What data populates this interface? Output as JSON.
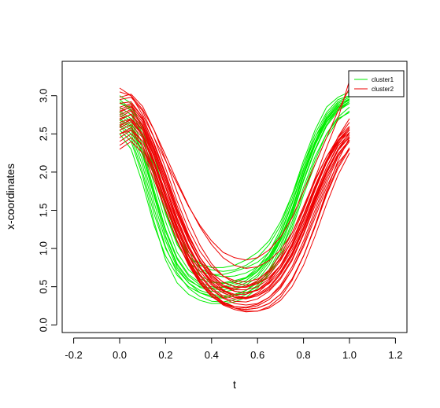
{
  "chart_data": {
    "type": "line",
    "title": "",
    "xlabel": "t",
    "ylabel": "x-coordinates",
    "xlim": [
      -0.25,
      1.25
    ],
    "ylim": [
      -0.1,
      3.45
    ],
    "x_ticks": [
      -0.2,
      0.0,
      0.2,
      0.4,
      0.6,
      0.8,
      1.0,
      1.2
    ],
    "x_tick_labels": [
      "-0.2",
      "0.0",
      "0.2",
      "0.4",
      "0.6",
      "0.8",
      "1.0",
      "1.2"
    ],
    "y_ticks": [
      0.0,
      0.5,
      1.0,
      1.5,
      2.0,
      2.5,
      3.0
    ],
    "y_tick_labels": [
      "0.0",
      "0.5",
      "1.0",
      "1.5",
      "2.0",
      "2.5",
      "3.0"
    ],
    "grid": false,
    "legend_position": "top-right",
    "legend": [
      {
        "label": "cluster1",
        "color": "#00ee00"
      },
      {
        "label": "cluster2",
        "color": "#ee0000"
      }
    ],
    "t": [
      0.0,
      0.05,
      0.1,
      0.15,
      0.2,
      0.25,
      0.3,
      0.35,
      0.4,
      0.45,
      0.5,
      0.55,
      0.6,
      0.65,
      0.7,
      0.75,
      0.8,
      0.85,
      0.9,
      0.95,
      1.0
    ],
    "series": [
      {
        "color": "#00ee00",
        "values": [
          2.95,
          2.82,
          2.45,
          1.95,
          1.45,
          1.05,
          0.82,
          0.7,
          0.66,
          0.66,
          0.7,
          0.75,
          0.82,
          0.95,
          1.2,
          1.6,
          2.05,
          2.45,
          2.75,
          2.92,
          3.0
        ]
      },
      {
        "color": "#00ee00",
        "values": [
          2.8,
          2.7,
          2.35,
          1.85,
          1.35,
          0.95,
          0.72,
          0.6,
          0.55,
          0.55,
          0.58,
          0.62,
          0.72,
          0.88,
          1.12,
          1.5,
          1.95,
          2.35,
          2.65,
          2.82,
          2.9
        ]
      },
      {
        "color": "#00ee00",
        "values": [
          2.6,
          2.45,
          2.0,
          1.45,
          1.0,
          0.72,
          0.55,
          0.45,
          0.4,
          0.38,
          0.4,
          0.45,
          0.55,
          0.7,
          0.95,
          1.3,
          1.75,
          2.15,
          2.5,
          2.72,
          2.85
        ]
      },
      {
        "color": "#00ee00",
        "values": [
          2.5,
          2.3,
          1.85,
          1.3,
          0.9,
          0.65,
          0.5,
          0.42,
          0.38,
          0.36,
          0.38,
          0.42,
          0.5,
          0.65,
          0.88,
          1.25,
          1.7,
          2.1,
          2.45,
          2.68,
          2.8
        ]
      },
      {
        "color": "#00ee00",
        "values": [
          2.7,
          2.6,
          2.25,
          1.7,
          1.15,
          0.78,
          0.58,
          0.5,
          0.48,
          0.5,
          0.55,
          0.62,
          0.75,
          0.95,
          1.25,
          1.65,
          2.1,
          2.5,
          2.78,
          2.95,
          3.0
        ]
      },
      {
        "color": "#00ee00",
        "values": [
          2.9,
          2.85,
          2.6,
          2.2,
          1.7,
          1.25,
          0.95,
          0.8,
          0.75,
          0.75,
          0.78,
          0.85,
          0.95,
          1.1,
          1.35,
          1.7,
          2.1,
          2.45,
          2.7,
          2.85,
          2.95
        ]
      },
      {
        "color": "#00ee00",
        "values": [
          2.65,
          2.55,
          2.15,
          1.6,
          1.1,
          0.75,
          0.55,
          0.42,
          0.36,
          0.35,
          0.38,
          0.45,
          0.58,
          0.78,
          1.05,
          1.45,
          1.9,
          2.3,
          2.62,
          2.82,
          2.92
        ]
      },
      {
        "color": "#00ee00",
        "values": [
          2.55,
          2.4,
          1.95,
          1.35,
          0.85,
          0.55,
          0.4,
          0.32,
          0.28,
          0.28,
          0.3,
          0.36,
          0.48,
          0.68,
          0.95,
          1.35,
          1.8,
          2.2,
          2.5,
          2.7,
          2.78
        ]
      },
      {
        "color": "#00ee00",
        "values": [
          3.0,
          2.9,
          2.55,
          2.05,
          1.55,
          1.15,
          0.9,
          0.78,
          0.72,
          0.7,
          0.72,
          0.78,
          0.88,
          1.05,
          1.3,
          1.7,
          2.15,
          2.55,
          2.85,
          2.98,
          3.05
        ]
      },
      {
        "color": "#00ee00",
        "values": [
          2.75,
          2.62,
          2.25,
          1.72,
          1.22,
          0.86,
          0.64,
          0.52,
          0.47,
          0.46,
          0.49,
          0.55,
          0.66,
          0.85,
          1.12,
          1.52,
          1.98,
          2.38,
          2.68,
          2.86,
          2.94
        ]
      },
      {
        "color": "#00ee00",
        "values": [
          2.85,
          2.75,
          2.45,
          1.98,
          1.48,
          1.08,
          0.8,
          0.64,
          0.57,
          0.54,
          0.56,
          0.61,
          0.7,
          0.86,
          1.1,
          1.48,
          1.95,
          2.38,
          2.7,
          2.88,
          2.96
        ]
      },
      {
        "color": "#00ee00",
        "values": [
          2.62,
          2.5,
          2.08,
          1.52,
          1.02,
          0.68,
          0.48,
          0.37,
          0.31,
          0.3,
          0.33,
          0.4,
          0.52,
          0.72,
          1.0,
          1.42,
          1.88,
          2.28,
          2.6,
          2.8,
          2.9
        ]
      },
      {
        "color": "#00ee00",
        "values": [
          2.92,
          2.8,
          2.5,
          2.05,
          1.58,
          1.18,
          0.9,
          0.74,
          0.66,
          0.63,
          0.64,
          0.68,
          0.76,
          0.9,
          1.14,
          1.52,
          1.98,
          2.4,
          2.72,
          2.9,
          2.98
        ]
      },
      {
        "color": "#00ee00",
        "values": [
          2.68,
          2.58,
          2.22,
          1.68,
          1.16,
          0.8,
          0.6,
          0.49,
          0.44,
          0.43,
          0.46,
          0.52,
          0.63,
          0.82,
          1.1,
          1.5,
          1.96,
          2.36,
          2.66,
          2.84,
          2.92
        ]
      },
      {
        "color": "#00ee00",
        "values": [
          2.78,
          2.66,
          2.3,
          1.76,
          1.25,
          0.88,
          0.66,
          0.55,
          0.5,
          0.49,
          0.52,
          0.58,
          0.7,
          0.9,
          1.18,
          1.58,
          2.02,
          2.4,
          2.7,
          2.88,
          2.95
        ]
      },
      {
        "color": "#ee0000",
        "values": [
          2.6,
          2.7,
          2.55,
          2.2,
          1.8,
          1.35,
          1.0,
          0.75,
          0.58,
          0.5,
          0.48,
          0.5,
          0.58,
          0.72,
          0.92,
          1.2,
          1.55,
          1.9,
          2.2,
          2.4,
          2.55
        ]
      },
      {
        "color": "#ee0000",
        "values": [
          3.1,
          3.0,
          2.75,
          2.45,
          2.15,
          1.85,
          1.55,
          1.3,
          1.1,
          0.95,
          0.88,
          0.85,
          0.88,
          0.98,
          1.15,
          1.4,
          1.75,
          2.1,
          2.45,
          2.8,
          3.1
        ]
      },
      {
        "color": "#ee0000",
        "values": [
          2.5,
          2.55,
          2.35,
          1.95,
          1.5,
          1.1,
          0.8,
          0.55,
          0.38,
          0.28,
          0.22,
          0.2,
          0.22,
          0.28,
          0.4,
          0.6,
          0.9,
          1.3,
          1.75,
          2.15,
          2.45
        ]
      },
      {
        "color": "#ee0000",
        "values": [
          2.8,
          2.85,
          2.65,
          2.3,
          1.9,
          1.5,
          1.15,
          0.88,
          0.68,
          0.56,
          0.5,
          0.5,
          0.56,
          0.68,
          0.88,
          1.15,
          1.5,
          1.88,
          2.2,
          2.45,
          2.6
        ]
      },
      {
        "color": "#ee0000",
        "values": [
          2.7,
          2.75,
          2.55,
          2.15,
          1.7,
          1.28,
          0.92,
          0.66,
          0.48,
          0.38,
          0.34,
          0.35,
          0.42,
          0.55,
          0.75,
          1.02,
          1.38,
          1.78,
          2.12,
          2.38,
          2.52
        ]
      },
      {
        "color": "#ee0000",
        "values": [
          2.4,
          2.5,
          2.35,
          2.0,
          1.6,
          1.2,
          0.85,
          0.6,
          0.42,
          0.3,
          0.24,
          0.22,
          0.25,
          0.33,
          0.48,
          0.72,
          1.05,
          1.45,
          1.85,
          2.2,
          2.4
        ]
      },
      {
        "color": "#ee0000",
        "values": [
          2.95,
          2.98,
          2.8,
          2.45,
          2.05,
          1.62,
          1.25,
          0.96,
          0.76,
          0.64,
          0.58,
          0.56,
          0.6,
          0.7,
          0.86,
          1.1,
          1.42,
          1.8,
          2.15,
          2.45,
          2.65
        ]
      },
      {
        "color": "#ee0000",
        "values": [
          2.55,
          2.62,
          2.45,
          2.1,
          1.68,
          1.25,
          0.9,
          0.64,
          0.46,
          0.35,
          0.28,
          0.26,
          0.28,
          0.36,
          0.5,
          0.72,
          1.02,
          1.4,
          1.8,
          2.12,
          2.3
        ]
      },
      {
        "color": "#ee0000",
        "values": [
          2.75,
          2.82,
          2.62,
          2.28,
          1.86,
          1.45,
          1.1,
          0.82,
          0.62,
          0.5,
          0.44,
          0.42,
          0.46,
          0.56,
          0.74,
          0.98,
          1.32,
          1.7,
          2.06,
          2.34,
          2.5
        ]
      },
      {
        "color": "#ee0000",
        "values": [
          3.05,
          3.0,
          2.82,
          2.55,
          2.22,
          1.88,
          1.56,
          1.28,
          1.05,
          0.88,
          0.78,
          0.74,
          0.76,
          0.84,
          0.98,
          1.2,
          1.52,
          1.92,
          2.32,
          2.7,
          3.2
        ]
      },
      {
        "color": "#ee0000",
        "values": [
          2.65,
          2.7,
          2.5,
          2.12,
          1.7,
          1.3,
          0.96,
          0.7,
          0.52,
          0.42,
          0.36,
          0.35,
          0.4,
          0.5,
          0.68,
          0.94,
          1.28,
          1.66,
          2.02,
          2.3,
          2.45
        ]
      },
      {
        "color": "#ee0000",
        "values": [
          2.85,
          2.9,
          2.72,
          2.36,
          1.95,
          1.52,
          1.16,
          0.88,
          0.68,
          0.56,
          0.5,
          0.49,
          0.54,
          0.65,
          0.84,
          1.1,
          1.44,
          1.82,
          2.16,
          2.42,
          2.58
        ]
      },
      {
        "color": "#ee0000",
        "values": [
          2.45,
          2.55,
          2.4,
          2.05,
          1.62,
          1.2,
          0.86,
          0.6,
          0.42,
          0.3,
          0.22,
          0.18,
          0.18,
          0.24,
          0.36,
          0.58,
          0.9,
          1.3,
          1.72,
          2.08,
          2.32
        ]
      },
      {
        "color": "#ee0000",
        "values": [
          2.72,
          2.8,
          2.6,
          2.25,
          1.82,
          1.4,
          1.04,
          0.76,
          0.56,
          0.44,
          0.38,
          0.36,
          0.4,
          0.5,
          0.68,
          0.92,
          1.26,
          1.64,
          2.0,
          2.3,
          2.48
        ]
      },
      {
        "color": "#ee0000",
        "values": [
          2.58,
          2.66,
          2.48,
          2.14,
          1.74,
          1.34,
          1.0,
          0.74,
          0.56,
          0.45,
          0.4,
          0.4,
          0.46,
          0.58,
          0.78,
          1.06,
          1.42,
          1.8,
          2.14,
          2.4,
          2.55
        ]
      },
      {
        "color": "#ee0000",
        "values": [
          2.9,
          2.92,
          2.72,
          2.36,
          1.94,
          1.5,
          1.12,
          0.82,
          0.6,
          0.46,
          0.38,
          0.35,
          0.38,
          0.46,
          0.62,
          0.86,
          1.2,
          1.6,
          1.98,
          2.3,
          2.52
        ]
      },
      {
        "color": "#ee0000",
        "values": [
          2.35,
          2.45,
          2.3,
          1.96,
          1.56,
          1.16,
          0.82,
          0.56,
          0.38,
          0.26,
          0.2,
          0.17,
          0.18,
          0.22,
          0.32,
          0.5,
          0.78,
          1.16,
          1.58,
          1.96,
          2.25
        ]
      },
      {
        "color": "#ee0000",
        "values": [
          2.78,
          2.86,
          2.7,
          2.38,
          1.98,
          1.56,
          1.18,
          0.88,
          0.66,
          0.52,
          0.44,
          0.42,
          0.45,
          0.54,
          0.7,
          0.94,
          1.28,
          1.68,
          2.06,
          2.36,
          2.56
        ]
      },
      {
        "color": "#ee0000",
        "values": [
          2.62,
          2.68,
          2.48,
          2.1,
          1.66,
          1.24,
          0.9,
          0.64,
          0.46,
          0.36,
          0.31,
          0.3,
          0.34,
          0.44,
          0.6,
          0.84,
          1.18,
          1.56,
          1.94,
          2.24,
          2.42
        ]
      },
      {
        "color": "#ee0000",
        "values": [
          2.98,
          3.02,
          2.86,
          2.55,
          2.16,
          1.74,
          1.36,
          1.04,
          0.8,
          0.64,
          0.55,
          0.52,
          0.54,
          0.62,
          0.78,
          1.02,
          1.36,
          1.76,
          2.14,
          2.46,
          2.7
        ]
      },
      {
        "color": "#ee0000",
        "values": [
          2.5,
          2.58,
          2.4,
          2.02,
          1.6,
          1.18,
          0.84,
          0.58,
          0.4,
          0.29,
          0.24,
          0.23,
          0.27,
          0.36,
          0.52,
          0.76,
          1.1,
          1.5,
          1.9,
          2.22,
          2.42
        ]
      },
      {
        "color": "#ee0000",
        "values": [
          2.68,
          2.76,
          2.58,
          2.22,
          1.8,
          1.38,
          1.02,
          0.74,
          0.54,
          0.42,
          0.36,
          0.34,
          0.38,
          0.48,
          0.66,
          0.9,
          1.24,
          1.62,
          1.98,
          2.28,
          2.46
        ]
      },
      {
        "color": "#ee0000",
        "values": [
          2.82,
          2.88,
          2.68,
          2.32,
          1.9,
          1.48,
          1.12,
          0.84,
          0.64,
          0.52,
          0.46,
          0.46,
          0.5,
          0.6,
          0.78,
          1.04,
          1.38,
          1.76,
          2.12,
          2.4,
          2.58
        ]
      },
      {
        "color": "#ee0000",
        "values": [
          2.3,
          2.4,
          2.25,
          1.9,
          1.5,
          1.1,
          0.78,
          0.54,
          0.37,
          0.27,
          0.22,
          0.2,
          0.22,
          0.28,
          0.4,
          0.6,
          0.9,
          1.28,
          1.7,
          2.05,
          2.3
        ]
      }
    ]
  }
}
